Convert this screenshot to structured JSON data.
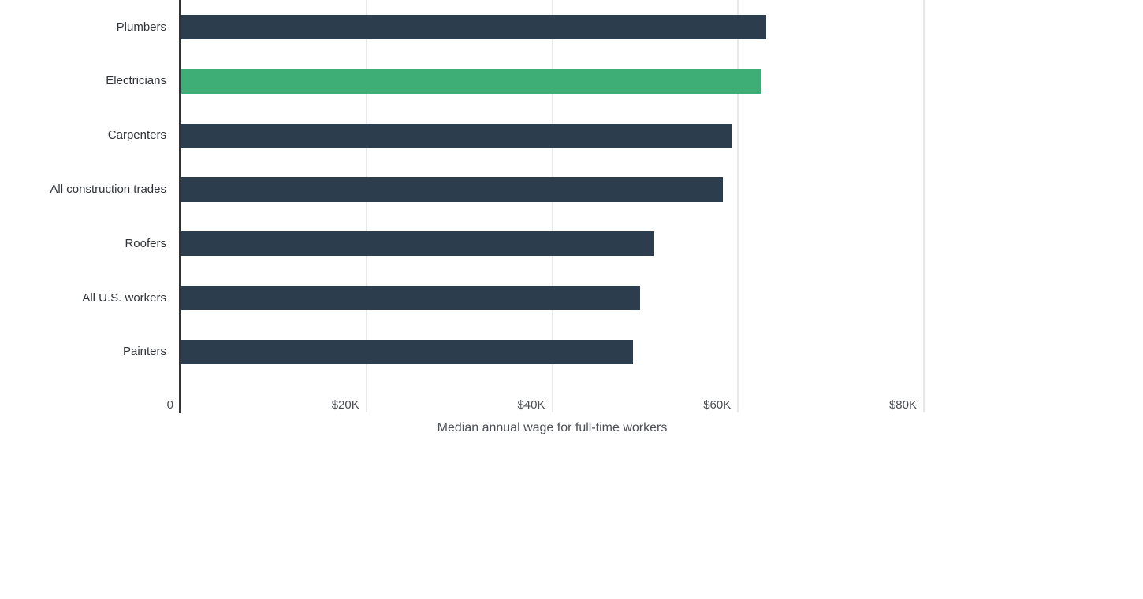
{
  "chart_data": {
    "type": "bar",
    "orientation": "horizontal",
    "title": "",
    "xlabel": "Median annual wage for full-time workers",
    "ylabel": "",
    "categories": [
      "Plumbers",
      "Electricians",
      "Carpenters",
      "All construction trades",
      "Roofers",
      "All U.S. workers",
      "Painters"
    ],
    "values": [
      63000,
      62400,
      59300,
      58400,
      51000,
      49500,
      48700
    ],
    "value_unit": "USD per year",
    "highlight_category": "Electricians",
    "x_ticks": [
      {
        "label": "0",
        "value": 0
      },
      {
        "label": "$20K",
        "value": 20000
      },
      {
        "label": "$40K",
        "value": 40000
      },
      {
        "label": "$60K",
        "value": 60000
      },
      {
        "label": "$80K",
        "value": 80000
      }
    ],
    "xlim": [
      0,
      80000
    ],
    "grid": "vertical-only",
    "legend": "none",
    "colors": {
      "bar": "#2c3d4e",
      "highlight_bar": "#3fae76",
      "axis_line": "#303439",
      "gridline": "#e8e8e8",
      "category_label": "#2f3338",
      "tick_label": "#4c4f54",
      "axis_title": "#4c4f54",
      "background": "#ffffff"
    }
  }
}
